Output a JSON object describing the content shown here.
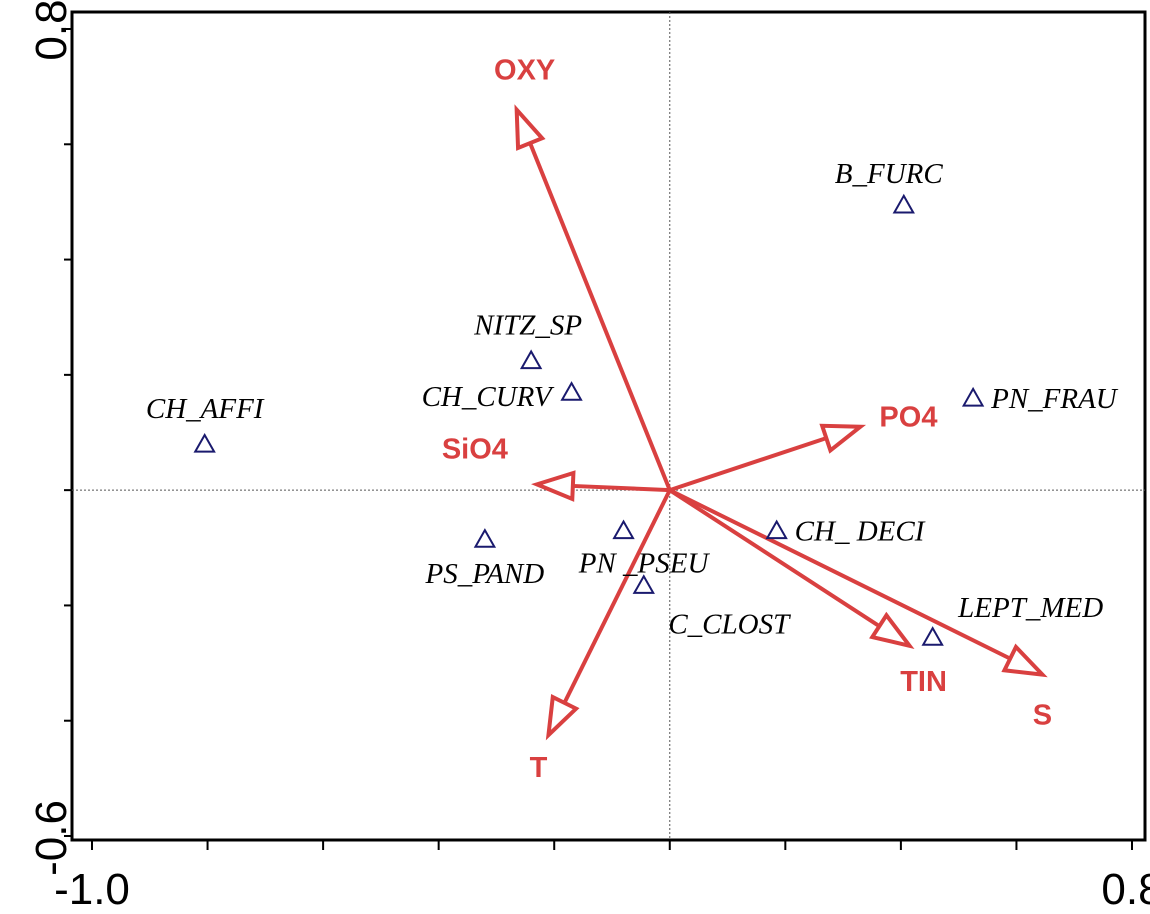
{
  "colors": {
    "arrow": "#d94040",
    "species_marker": "#1a1a6e",
    "frame": "#000000",
    "crosshair": "#555555"
  },
  "chart_data": {
    "type": "scatter",
    "title": "",
    "xlabel": "",
    "ylabel": "",
    "xlim": [
      -1.0,
      0.8
    ],
    "ylim": [
      -0.6,
      0.8
    ],
    "x_tick_labels": [
      "-1.0",
      "0.8"
    ],
    "y_tick_labels": [
      "0.8",
      "-0.6"
    ],
    "x_minor_ticks": [
      -1.0,
      -0.8,
      -0.6,
      -0.4,
      -0.2,
      0.0,
      0.2,
      0.4,
      0.6,
      0.8
    ],
    "y_minor_ticks": [
      -0.6,
      -0.4,
      -0.2,
      0.0,
      0.2,
      0.4,
      0.6,
      0.8
    ],
    "reference_lines": {
      "x": 0.0,
      "y": 0.0
    },
    "species": [
      {
        "name": "B_FURC",
        "x": 0.405,
        "y": 0.495
      },
      {
        "name": "NITZ_SP",
        "x": -0.24,
        "y": 0.225
      },
      {
        "name": "CH_CURV",
        "x": -0.17,
        "y": 0.17
      },
      {
        "name": "PN_FRAU",
        "x": 0.525,
        "y": 0.16
      },
      {
        "name": "CH_AFFI",
        "x": -0.805,
        "y": 0.08
      },
      {
        "name": "PS_PAND",
        "x": -0.32,
        "y": -0.085
      },
      {
        "name": "PN _PSEU",
        "x": -0.08,
        "y": -0.07
      },
      {
        "name": "C_CLOST",
        "x": -0.045,
        "y": -0.165
      },
      {
        "name": "CH_ DECI",
        "x": 0.185,
        "y": -0.07
      },
      {
        "name": "LEPT_MED",
        "x": 0.455,
        "y": -0.255
      }
    ],
    "vectors": [
      {
        "name": "OXY",
        "x": -0.265,
        "y": 0.66
      },
      {
        "name": "PO4",
        "x": 0.33,
        "y": 0.11
      },
      {
        "name": "SiO4",
        "x": -0.23,
        "y": 0.01
      },
      {
        "name": "T",
        "x": -0.21,
        "y": -0.425
      },
      {
        "name": "TIN",
        "x": 0.415,
        "y": -0.27
      },
      {
        "name": "S",
        "x": 0.645,
        "y": -0.32
      }
    ]
  }
}
